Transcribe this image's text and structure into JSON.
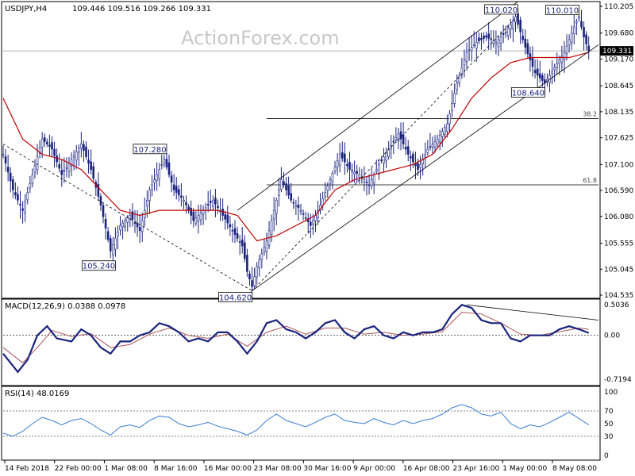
{
  "header": {
    "symbol": "USDJPY,H4",
    "ohlc": "109.446 109.516 109.266 109.331",
    "watermark": "ActionForex.com"
  },
  "colors": {
    "candle": "#1a237e",
    "ma": "#c00000",
    "macd_line": "#1a237e",
    "macd_signal": "#aa5555",
    "rsi": "#3a7bd5",
    "trendline": "#000000",
    "price_tag_bg": "#000000"
  },
  "chart_data": [
    {
      "type": "candlestick",
      "title": "USDJPY,H4",
      "price_axis_ticks": [
        "110.205",
        "109.680",
        "109.170",
        "108.645",
        "108.135",
        "107.625",
        "107.100",
        "106.590",
        "106.080",
        "105.555",
        "105.045",
        "104.535"
      ],
      "ylim": [
        104.535,
        110.205
      ],
      "last_price": 109.331,
      "last_price_label": "109.331",
      "x_tick_labels": [
        "14 Feb 2018",
        "22 Feb 00:00",
        "1 Mar 08:00",
        "8 Mar 16:00",
        "16 Mar 00:00",
        "23 Mar 08:00",
        "30 Mar 16:00",
        "9 Apr 00:00",
        "16 Apr 08:00",
        "23 Apr 16:00",
        "1 May 00:00",
        "8 May 08:00"
      ],
      "close_path": [
        [
          0,
          107.3
        ],
        [
          4,
          106.6
        ],
        [
          8,
          106.2
        ],
        [
          12,
          106.9
        ],
        [
          16,
          107.6
        ],
        [
          20,
          107.4
        ],
        [
          24,
          106.9
        ],
        [
          28,
          107.2
        ],
        [
          32,
          107.5
        ],
        [
          36,
          107.0
        ],
        [
          40,
          106.3
        ],
        [
          44,
          105.4
        ],
        [
          48,
          105.9
        ],
        [
          52,
          106.1
        ],
        [
          56,
          105.8
        ],
        [
          60,
          106.6
        ],
        [
          64,
          107.0
        ],
        [
          66,
          107.2
        ],
        [
          70,
          106.6
        ],
        [
          74,
          106.4
        ],
        [
          78,
          106.0
        ],
        [
          82,
          106.2
        ],
        [
          86,
          106.4
        ],
        [
          90,
          106.1
        ],
        [
          94,
          105.8
        ],
        [
          98,
          105.5
        ],
        [
          100,
          105.0
        ],
        [
          102,
          104.7
        ],
        [
          104,
          105.1
        ],
        [
          108,
          105.6
        ],
        [
          112,
          106.4
        ],
        [
          114,
          106.8
        ],
        [
          118,
          106.4
        ],
        [
          122,
          106.2
        ],
        [
          126,
          105.9
        ],
        [
          130,
          106.3
        ],
        [
          134,
          106.8
        ],
        [
          138,
          107.3
        ],
        [
          142,
          107.0
        ],
        [
          146,
          106.9
        ],
        [
          150,
          106.7
        ],
        [
          154,
          107.1
        ],
        [
          158,
          107.4
        ],
        [
          162,
          107.7
        ],
        [
          166,
          107.3
        ],
        [
          170,
          107.0
        ],
        [
          174,
          107.4
        ],
        [
          178,
          107.6
        ],
        [
          182,
          107.9
        ],
        [
          186,
          108.7
        ],
        [
          190,
          109.3
        ],
        [
          194,
          109.5
        ],
        [
          198,
          109.6
        ],
        [
          202,
          109.5
        ],
        [
          206,
          109.7
        ],
        [
          210,
          110.0
        ],
        [
          214,
          109.4
        ],
        [
          218,
          108.9
        ],
        [
          222,
          108.7
        ],
        [
          226,
          109.0
        ],
        [
          230,
          109.3
        ],
        [
          234,
          109.8
        ],
        [
          236,
          110.0
        ],
        [
          238,
          109.6
        ],
        [
          240,
          109.331
        ]
      ],
      "moving_average_path": [
        [
          0,
          108.4
        ],
        [
          8,
          107.6
        ],
        [
          16,
          107.3
        ],
        [
          24,
          107.2
        ],
        [
          32,
          107.0
        ],
        [
          40,
          106.6
        ],
        [
          48,
          106.2
        ],
        [
          56,
          106.1
        ],
        [
          64,
          106.2
        ],
        [
          72,
          106.2
        ],
        [
          80,
          106.2
        ],
        [
          88,
          106.2
        ],
        [
          96,
          106.1
        ],
        [
          104,
          105.6
        ],
        [
          112,
          105.7
        ],
        [
          120,
          105.9
        ],
        [
          128,
          106.1
        ],
        [
          136,
          106.6
        ],
        [
          144,
          106.8
        ],
        [
          152,
          106.9
        ],
        [
          160,
          107.0
        ],
        [
          168,
          107.1
        ],
        [
          176,
          107.3
        ],
        [
          184,
          107.8
        ],
        [
          192,
          108.4
        ],
        [
          200,
          108.8
        ],
        [
          208,
          109.1
        ],
        [
          216,
          109.2
        ],
        [
          224,
          109.2
        ],
        [
          232,
          109.2
        ],
        [
          240,
          109.3
        ]
      ],
      "swing_labels": [
        {
          "text": "110.020",
          "bar": 211,
          "price": 110.02,
          "anchor": "high"
        },
        {
          "text": "110.010",
          "bar": 236,
          "price": 110.01,
          "anchor": "high"
        },
        {
          "text": "108.640",
          "bar": 222,
          "price": 108.64,
          "anchor": "low"
        },
        {
          "text": "107.280",
          "bar": 67,
          "price": 107.28,
          "anchor": "high"
        },
        {
          "text": "105.240",
          "bar": 46,
          "price": 105.24,
          "anchor": "low"
        },
        {
          "text": "104.620",
          "bar": 102,
          "price": 104.62,
          "anchor": "low"
        }
      ],
      "fibonacci_levels": [
        {
          "label": "38.2",
          "price": 108.0
        },
        {
          "label": "61.8",
          "price": 106.7
        }
      ],
      "trendlines": [
        {
          "style": "dashed",
          "from": [
            0,
            107.5
          ],
          "to": [
            102,
            104.62
          ]
        },
        {
          "style": "dashed",
          "from": [
            102,
            104.62
          ],
          "to": [
            211,
            110.02
          ]
        },
        {
          "style": "solid",
          "from": [
            96,
            106.2
          ],
          "to": [
            211,
            110.3
          ]
        },
        {
          "style": "solid",
          "from": [
            102,
            104.62
          ],
          "to": [
            244,
            109.45
          ]
        }
      ]
    },
    {
      "type": "line",
      "title": "MACD(12,26,9) 0.0388 0.0978",
      "yticks": [
        "0.5036",
        "0.00",
        "-0.7194"
      ],
      "ylim": [
        -0.7194,
        0.5036
      ],
      "series": [
        {
          "name": "MACD",
          "values": [
            [
              0,
              -0.3
            ],
            [
              6,
              -0.6
            ],
            [
              10,
              -0.4
            ],
            [
              14,
              0.0
            ],
            [
              18,
              0.15
            ],
            [
              22,
              -0.05
            ],
            [
              28,
              -0.1
            ],
            [
              32,
              0.1
            ],
            [
              36,
              0.0
            ],
            [
              40,
              -0.2
            ],
            [
              44,
              -0.3
            ],
            [
              48,
              -0.1
            ],
            [
              52,
              -0.1
            ],
            [
              56,
              0.0
            ],
            [
              60,
              0.05
            ],
            [
              64,
              0.2
            ],
            [
              68,
              0.15
            ],
            [
              72,
              0.05
            ],
            [
              76,
              -0.1
            ],
            [
              80,
              -0.05
            ],
            [
              84,
              -0.1
            ],
            [
              88,
              0.05
            ],
            [
              92,
              0.05
            ],
            [
              96,
              -0.1
            ],
            [
              100,
              -0.3
            ],
            [
              104,
              -0.1
            ],
            [
              108,
              0.2
            ],
            [
              112,
              0.25
            ],
            [
              116,
              0.1
            ],
            [
              120,
              0.05
            ],
            [
              124,
              -0.05
            ],
            [
              128,
              0.05
            ],
            [
              132,
              0.2
            ],
            [
              136,
              0.25
            ],
            [
              140,
              0.05
            ],
            [
              144,
              -0.05
            ],
            [
              148,
              0.1
            ],
            [
              152,
              0.15
            ],
            [
              156,
              0.0
            ],
            [
              160,
              -0.05
            ],
            [
              164,
              0.05
            ],
            [
              168,
              0.0
            ],
            [
              172,
              0.05
            ],
            [
              176,
              0.05
            ],
            [
              180,
              0.1
            ],
            [
              184,
              0.35
            ],
            [
              188,
              0.5
            ],
            [
              192,
              0.45
            ],
            [
              196,
              0.25
            ],
            [
              200,
              0.2
            ],
            [
              204,
              0.2
            ],
            [
              208,
              -0.05
            ],
            [
              212,
              -0.1
            ],
            [
              216,
              0.0
            ],
            [
              220,
              0.0
            ],
            [
              224,
              0.0
            ],
            [
              228,
              0.1
            ],
            [
              232,
              0.15
            ],
            [
              236,
              0.1
            ],
            [
              240,
              0.04
            ]
          ]
        },
        {
          "name": "Signal",
          "values": [
            [
              0,
              -0.2
            ],
            [
              8,
              -0.45
            ],
            [
              14,
              -0.2
            ],
            [
              20,
              0.08
            ],
            [
              28,
              -0.02
            ],
            [
              36,
              0.03
            ],
            [
              44,
              -0.2
            ],
            [
              52,
              -0.15
            ],
            [
              60,
              0.02
            ],
            [
              68,
              0.12
            ],
            [
              76,
              0.0
            ],
            [
              84,
              -0.05
            ],
            [
              92,
              0.02
            ],
            [
              100,
              -0.18
            ],
            [
              108,
              0.05
            ],
            [
              116,
              0.15
            ],
            [
              124,
              0.02
            ],
            [
              132,
              0.12
            ],
            [
              140,
              0.12
            ],
            [
              148,
              0.02
            ],
            [
              156,
              0.05
            ],
            [
              164,
              0.0
            ],
            [
              172,
              0.02
            ],
            [
              180,
              0.06
            ],
            [
              188,
              0.38
            ],
            [
              196,
              0.35
            ],
            [
              204,
              0.2
            ],
            [
              212,
              0.02
            ],
            [
              220,
              0.0
            ],
            [
              228,
              0.06
            ],
            [
              236,
              0.12
            ],
            [
              240,
              0.1
            ]
          ]
        }
      ],
      "divergence_line": {
        "from": [
          190,
          0.5
        ],
        "to": [
          244,
          0.25
        ]
      }
    },
    {
      "type": "line",
      "title": "RSI(14) 48.0169",
      "yticks": [
        "100",
        "70",
        "50",
        "30",
        "0"
      ],
      "ylim": [
        0,
        100
      ],
      "series": [
        {
          "name": "RSI",
          "values": [
            [
              0,
              35
            ],
            [
              4,
              30
            ],
            [
              8,
              38
            ],
            [
              12,
              50
            ],
            [
              16,
              60
            ],
            [
              20,
              55
            ],
            [
              24,
              48
            ],
            [
              28,
              55
            ],
            [
              32,
              58
            ],
            [
              36,
              50
            ],
            [
              40,
              40
            ],
            [
              44,
              32
            ],
            [
              48,
              45
            ],
            [
              52,
              48
            ],
            [
              56,
              44
            ],
            [
              60,
              55
            ],
            [
              64,
              62
            ],
            [
              68,
              60
            ],
            [
              72,
              50
            ],
            [
              76,
              45
            ],
            [
              80,
              48
            ],
            [
              84,
              52
            ],
            [
              88,
              46
            ],
            [
              92,
              42
            ],
            [
              96,
              38
            ],
            [
              100,
              32
            ],
            [
              104,
              40
            ],
            [
              108,
              55
            ],
            [
              112,
              65
            ],
            [
              116,
              55
            ],
            [
              120,
              50
            ],
            [
              124,
              45
            ],
            [
              128,
              52
            ],
            [
              132,
              60
            ],
            [
              136,
              65
            ],
            [
              140,
              55
            ],
            [
              144,
              52
            ],
            [
              148,
              50
            ],
            [
              152,
              58
            ],
            [
              156,
              52
            ],
            [
              160,
              48
            ],
            [
              164,
              55
            ],
            [
              168,
              50
            ],
            [
              172,
              55
            ],
            [
              176,
              58
            ],
            [
              180,
              65
            ],
            [
              184,
              75
            ],
            [
              188,
              80
            ],
            [
              192,
              75
            ],
            [
              196,
              65
            ],
            [
              200,
              62
            ],
            [
              204,
              68
            ],
            [
              208,
              50
            ],
            [
              212,
              42
            ],
            [
              216,
              48
            ],
            [
              220,
              45
            ],
            [
              224,
              52
            ],
            [
              228,
              60
            ],
            [
              232,
              68
            ],
            [
              236,
              58
            ],
            [
              240,
              48
            ]
          ]
        }
      ],
      "reference_levels": [
        70,
        30
      ]
    }
  ]
}
